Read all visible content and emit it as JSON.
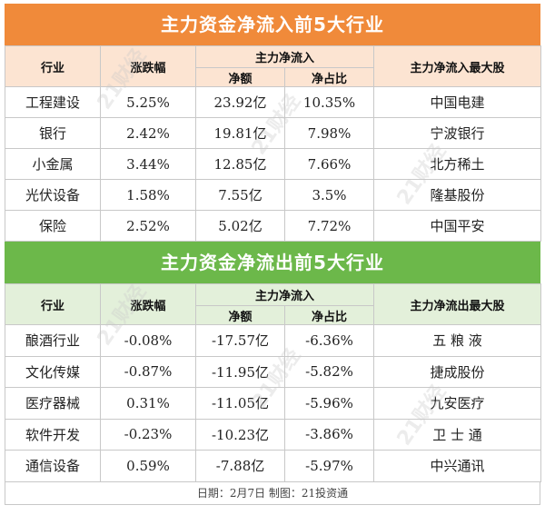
{
  "inflow": {
    "title": "主力资金净流入前5大行业",
    "headers": {
      "industry": "行业",
      "change": "涨跌幅",
      "group": "主力净流入",
      "net": "净额",
      "ratio": "净占比",
      "top": "主力净流入最大股"
    },
    "rows": [
      {
        "industry": "工程建设",
        "change": "5.25%",
        "net": "23.92亿",
        "ratio": "10.35%",
        "top": "中国电建"
      },
      {
        "industry": "银行",
        "change": "2.42%",
        "net": "19.81亿",
        "ratio": "7.98%",
        "top": "宁波银行"
      },
      {
        "industry": "小金属",
        "change": "3.44%",
        "net": "12.85亿",
        "ratio": "7.66%",
        "top": "北方稀土"
      },
      {
        "industry": "光伏设备",
        "change": "1.58%",
        "net": "7.55亿",
        "ratio": "3.5%",
        "top": "隆基股份"
      },
      {
        "industry": "保险",
        "change": "2.52%",
        "net": "5.02亿",
        "ratio": "7.72%",
        "top": "中国平安"
      }
    ]
  },
  "outflow": {
    "title": "主力资金净流出前5大行业",
    "headers": {
      "industry": "行业",
      "change": "涨跌幅",
      "group": "主力净流入",
      "net": "净额",
      "ratio": "净占比",
      "top": "主力净流出最大股"
    },
    "rows": [
      {
        "industry": "酿酒行业",
        "change": "-0.08%",
        "net": "-17.57亿",
        "ratio": "-6.36%",
        "top": "五 粮 液"
      },
      {
        "industry": "文化传媒",
        "change": "-0.87%",
        "net": "-11.95亿",
        "ratio": "-5.82%",
        "top": "捷成股份"
      },
      {
        "industry": "医疗器械",
        "change": "0.31%",
        "net": "-11.05亿",
        "ratio": "-5.96%",
        "top": "九安医疗"
      },
      {
        "industry": "软件开发",
        "change": "-0.23%",
        "net": "-10.23亿",
        "ratio": "-3.86%",
        "top": "卫 士 通"
      },
      {
        "industry": "通信设备",
        "change": "0.59%",
        "net": "-7.88亿",
        "ratio": "-5.97%",
        "top": "中兴通讯"
      }
    ]
  },
  "footer": "日期：2月7日  制图：21投资通",
  "watermark": "21财经",
  "colors": {
    "inflow_banner": "#f08a3a",
    "inflow_header": "#fce4d2",
    "outflow_banner": "#6cb84a",
    "outflow_header": "#e3f0da"
  }
}
